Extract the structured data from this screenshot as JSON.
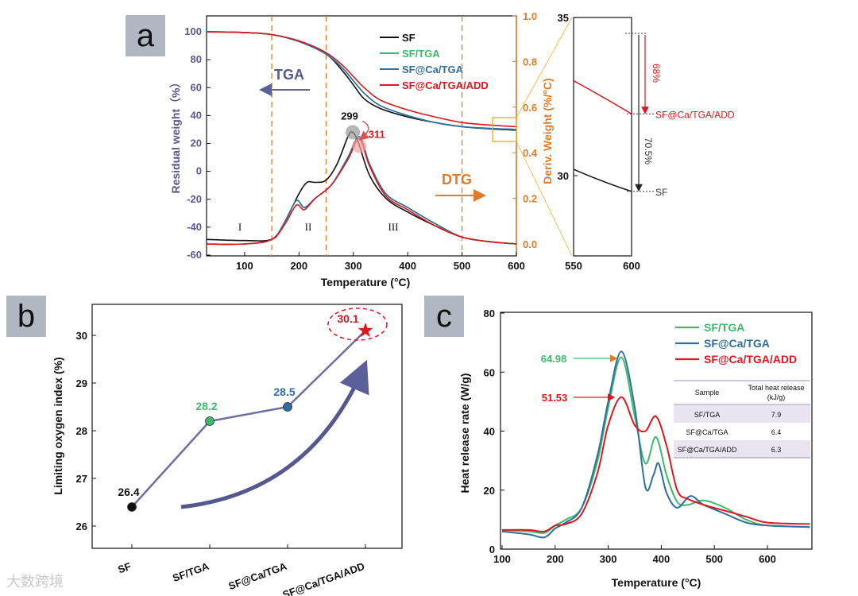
{
  "panels": {
    "a": {
      "label": "a",
      "xlabel": "Temperature (°C)",
      "ylabel_left": "Residual weight（%）",
      "ylabel_right": "Deriv. Weight (%/°C)",
      "x_ticks": [
        "100",
        "200",
        "300",
        "400",
        "500",
        "600"
      ],
      "yl_ticks": [
        "100",
        "80",
        "60",
        "40",
        "20",
        "0",
        "-20",
        "-40",
        "-60"
      ],
      "yr_ticks": [
        "1.0",
        "0.8",
        "0.6",
        "0.4",
        "0.2",
        "0.0"
      ],
      "tga_label": "TGA",
      "dtg_label": "DTG",
      "stages": [
        "I",
        "II",
        "III"
      ],
      "peak_labels": [
        "299",
        "311"
      ],
      "legend": [
        "SF",
        "SF/TGA",
        "SF@Ca/TGA",
        "SF@Ca/TGA/ADD"
      ],
      "zoom": {
        "y_ticks": [
          "35",
          "30"
        ],
        "x_ticks": [
          "550",
          "600"
        ],
        "pct_top": "68%",
        "pct_bottom": "70.5%",
        "label_add": "SF@Ca/TGA/ADD",
        "label_sf": "SF"
      }
    },
    "b": {
      "label": "b",
      "ylabel": "Limiting oxygen index (%)",
      "y_ticks": [
        "30",
        "29",
        "28",
        "27",
        "26"
      ],
      "categories": [
        "SF",
        "SF/TGA",
        "SF@Ca/TGA",
        "SF@Ca/TGA/ADD"
      ],
      "values": [
        "26.4",
        "28.2",
        "28.5",
        "30.1"
      ]
    },
    "c": {
      "label": "c",
      "xlabel": "Temperature (°C)",
      "ylabel": "Heat release rate (W/g)",
      "x_ticks": [
        "100",
        "200",
        "300",
        "400",
        "500",
        "600"
      ],
      "y_ticks": [
        "80",
        "60",
        "40",
        "20",
        "0"
      ],
      "legend": [
        "SF/TGA",
        "SF@Ca/TGA",
        "SF@Ca/TGA/ADD"
      ],
      "peak_labels": [
        "64.98",
        "51.53"
      ],
      "table": {
        "headers": [
          "Sample",
          "Total heat release\n(kJ/g)"
        ],
        "rows": [
          [
            "SF/TGA",
            "7.9"
          ],
          [
            "SF@Ca/TGA",
            "6.4"
          ],
          [
            "SF@Ca/TGA/ADD",
            "6.3"
          ]
        ]
      }
    }
  },
  "colors": {
    "sf": "#111111",
    "tga": "#3cb96a",
    "ca": "#2f6ea3",
    "add": "#e0161c",
    "axis_right": "#e07b2a",
    "arrow": "#5b5f9a"
  },
  "watermark": "大数跨境",
  "chart_data": [
    {
      "type": "line",
      "title": "",
      "xlabel": "Temperature (°C)",
      "ylabel": "Residual weight（%）",
      "xlim": [
        30,
        600
      ],
      "ylim": [
        -60,
        100
      ],
      "series": [
        {
          "name": "SF",
          "x": [
            30,
            100,
            150,
            200,
            250,
            280,
            300,
            320,
            350,
            400,
            450,
            500,
            550,
            600
          ],
          "y": [
            100,
            99.5,
            98,
            93,
            84,
            72,
            62,
            52,
            45,
            39,
            35,
            32,
            30.5,
            29.5
          ]
        },
        {
          "name": "SF/TGA",
          "x": [
            30,
            100,
            150,
            200,
            250,
            280,
            300,
            320,
            350,
            400,
            450,
            500,
            550,
            600
          ],
          "y": [
            100,
            99.5,
            98,
            93,
            84,
            74,
            65,
            56,
            47,
            40,
            35,
            32,
            30.8,
            30
          ]
        },
        {
          "name": "SF@Ca/TGA",
          "x": [
            30,
            100,
            150,
            200,
            250,
            280,
            300,
            320,
            350,
            400,
            450,
            500,
            550,
            600
          ],
          "y": [
            100,
            99.5,
            98,
            93,
            84,
            74,
            65,
            56,
            47,
            40,
            35,
            32,
            30.8,
            30
          ]
        },
        {
          "name": "SF@Ca/TGA/ADD",
          "x": [
            30,
            100,
            150,
            200,
            250,
            280,
            300,
            320,
            350,
            400,
            450,
            500,
            550,
            600
          ],
          "y": [
            100,
            99.5,
            98,
            93.5,
            85,
            76,
            68,
            60,
            51,
            44,
            39,
            35,
            33.2,
            32
          ]
        }
      ]
    },
    {
      "type": "line",
      "title": "",
      "xlabel": "Temperature (°C)",
      "ylabel": "Deriv. Weight (%/°C)",
      "xlim": [
        30,
        600
      ],
      "ylim": [
        -0.02,
        1.0
      ],
      "series": [
        {
          "name": "SF",
          "x": [
            30,
            100,
            150,
            170,
            200,
            215,
            230,
            250,
            270,
            290,
            299,
            310,
            330,
            360,
            400,
            450,
            500,
            550,
            600
          ],
          "y": [
            0.02,
            0.015,
            0.02,
            0.08,
            0.22,
            0.27,
            0.27,
            0.28,
            0.35,
            0.47,
            0.49,
            0.44,
            0.3,
            0.2,
            0.14,
            0.08,
            0.03,
            0.01,
            0.0
          ]
        },
        {
          "name": "SF/TGA",
          "x": [
            30,
            100,
            150,
            175,
            195,
            210,
            230,
            260,
            290,
            311,
            330,
            360,
            400,
            450,
            500,
            550,
            600
          ],
          "y": [
            0.0,
            0.0,
            0.02,
            0.1,
            0.19,
            0.16,
            0.2,
            0.26,
            0.38,
            0.47,
            0.35,
            0.22,
            0.16,
            0.09,
            0.03,
            0.01,
            0.0
          ]
        },
        {
          "name": "SF@Ca/TGA",
          "x": [
            30,
            100,
            150,
            175,
            195,
            210,
            230,
            260,
            290,
            311,
            330,
            360,
            400,
            450,
            500,
            550,
            600
          ],
          "y": [
            0.0,
            0.0,
            0.02,
            0.1,
            0.19,
            0.16,
            0.2,
            0.26,
            0.38,
            0.47,
            0.35,
            0.22,
            0.16,
            0.09,
            0.03,
            0.01,
            0.0
          ]
        },
        {
          "name": "SF@Ca/TGA/ADD",
          "x": [
            30,
            100,
            150,
            175,
            195,
            210,
            230,
            260,
            290,
            311,
            330,
            360,
            400,
            450,
            500,
            550,
            600
          ],
          "y": [
            0.0,
            0.0,
            0.02,
            0.09,
            0.17,
            0.15,
            0.2,
            0.26,
            0.37,
            0.46,
            0.34,
            0.21,
            0.15,
            0.08,
            0.03,
            0.01,
            0.0
          ]
        }
      ]
    },
    {
      "type": "line",
      "title": "",
      "xlabel": "",
      "ylabel": "Limiting oxygen index (%)",
      "categories": [
        "SF",
        "SF/TGA",
        "SF@Ca/TGA",
        "SF@Ca/TGA/ADD"
      ],
      "ylim": [
        25.7,
        30.6
      ],
      "series": [
        {
          "values": [
            26.4,
            28.2,
            28.5,
            30.1
          ]
        }
      ]
    },
    {
      "type": "line",
      "title": "",
      "xlabel": "Temperature (°C)",
      "ylabel": "Heat release rate (W/g)",
      "xlim": [
        100,
        680
      ],
      "ylim": [
        0,
        80
      ],
      "series": [
        {
          "name": "SF/TGA",
          "x": [
            100,
            150,
            180,
            200,
            220,
            250,
            280,
            300,
            325,
            350,
            370,
            390,
            410,
            430,
            450,
            480,
            520,
            560,
            600,
            680
          ],
          "y": [
            6.5,
            6,
            5.5,
            8,
            10,
            14,
            30,
            48,
            65,
            45,
            29,
            38,
            25,
            16,
            15,
            16.5,
            14,
            10,
            8,
            7.5
          ]
        },
        {
          "name": "SF@Ca/TGA",
          "x": [
            100,
            150,
            180,
            200,
            220,
            250,
            280,
            300,
            325,
            350,
            370,
            385,
            395,
            410,
            430,
            455,
            480,
            520,
            560,
            600,
            680
          ],
          "y": [
            6,
            5,
            4,
            7,
            9,
            14,
            32,
            50,
            67,
            48,
            21,
            25,
            29,
            19,
            14,
            18,
            15,
            12,
            9,
            8,
            7.5
          ]
        },
        {
          "name": "SF@Ca/TGA/ADD",
          "x": [
            100,
            150,
            180,
            200,
            220,
            250,
            280,
            300,
            325,
            350,
            370,
            390,
            410,
            430,
            450,
            480,
            520,
            560,
            600,
            680
          ],
          "y": [
            6.5,
            6.5,
            6,
            8,
            8.5,
            12,
            26,
            42,
            51.5,
            42,
            40,
            45,
            35,
            20,
            17,
            15,
            13,
            11,
            9,
            8.5
          ]
        }
      ]
    }
  ]
}
